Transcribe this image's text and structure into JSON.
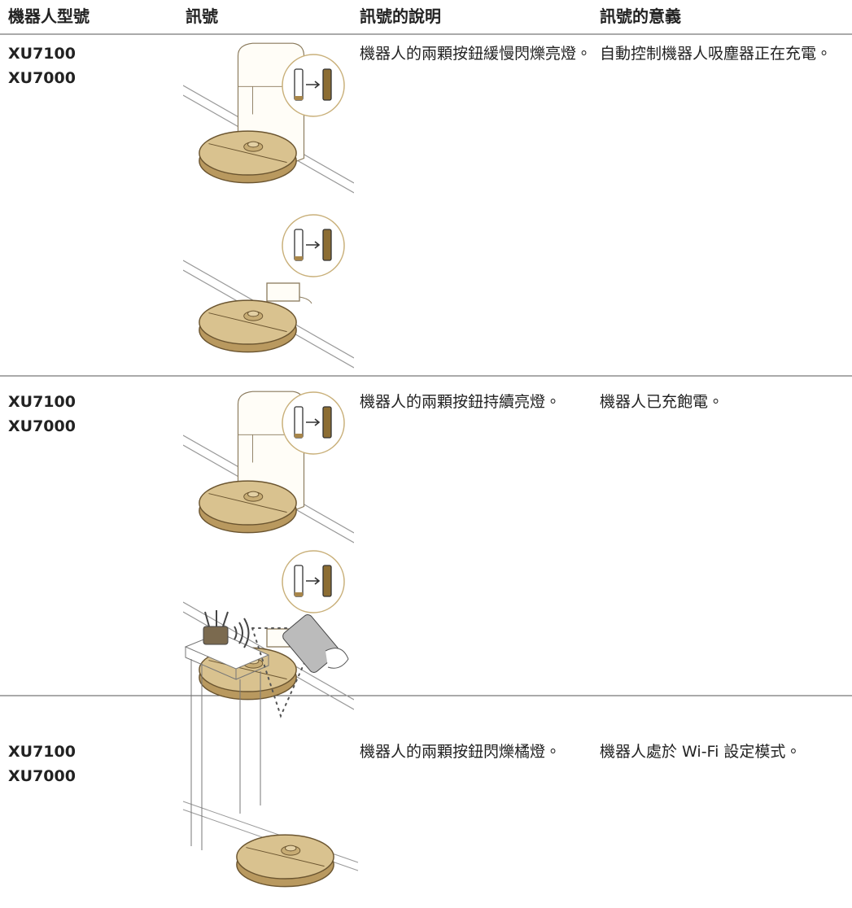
{
  "table": {
    "headers": [
      "機器人型號",
      "訊號",
      "訊號的說明",
      "訊號的意義"
    ],
    "rows": [
      {
        "models": [
          "XU7100",
          "XU7000"
        ],
        "description": "機器人的兩顆按鈕緩慢閃爍亮燈。",
        "meaning": "自動控制機器人吸塵器正在充電。"
      },
      {
        "models": [
          "XU7100",
          "XU7000"
        ],
        "description": "機器人的兩顆按鈕持續亮燈。",
        "meaning": "機器人已充飽電。"
      },
      {
        "models": [
          "XU7100",
          "XU7000"
        ],
        "description": "機器人的兩顆按鈕閃爍橘燈。",
        "meaning": "機器人處於 Wi-Fi 設定模式。"
      }
    ]
  }
}
